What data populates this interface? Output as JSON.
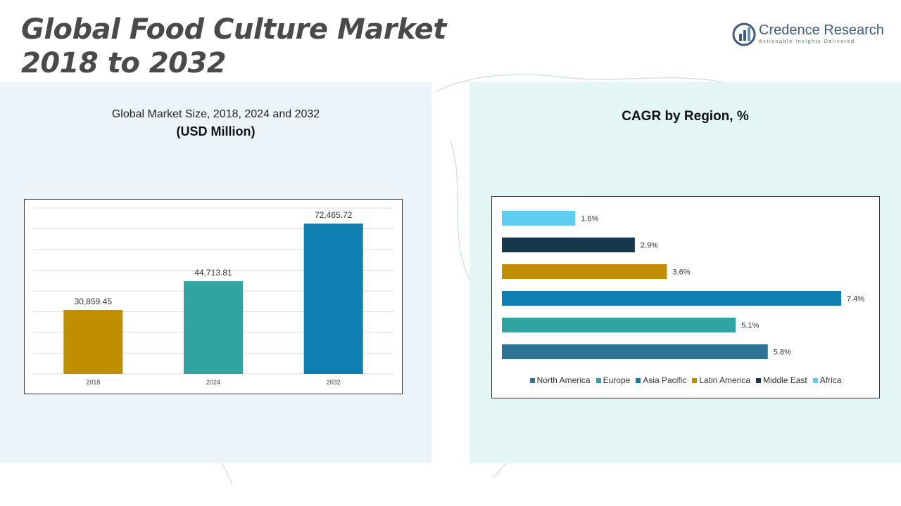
{
  "page": {
    "title_line1": "Global Food Culture Market",
    "title_line2": "2018 to 2032"
  },
  "logo": {
    "name": "Credence Research",
    "tagline": "Actionable Insights Delivered",
    "color": "#3d5a80"
  },
  "left_panel": {
    "subtitle": "Global Market Size, 2018, 2024 and 2032",
    "unit": "(USD Million)"
  },
  "right_panel": {
    "title": "CAGR by Region, %"
  },
  "chart_data": [
    {
      "type": "bar",
      "title": "Global Market Size, 2018, 2024 and 2032",
      "ylabel": "",
      "categories": [
        "2018",
        "2024",
        "2032"
      ],
      "values": [
        30859.45,
        44713.81,
        72465.72
      ],
      "labels": [
        "30,859.45",
        "44,713.81",
        "72,465.72"
      ],
      "colors": [
        "#bf8f00",
        "#31a3a3",
        "#0f7fb2"
      ],
      "ylim": [
        0,
        80000
      ],
      "grid": true
    },
    {
      "type": "bar",
      "orientation": "horizontal",
      "title": "CAGR by Region, %",
      "categories": [
        "North America",
        "Europe",
        "Asia Pacific",
        "Latin America",
        "Middle East",
        "Africa"
      ],
      "values": [
        5.8,
        5.1,
        7.4,
        3.6,
        2.9,
        1.6
      ],
      "labels": [
        "5.8%",
        "5.1%",
        "7.4%",
        "3.6%",
        "2.9%",
        "1.6%"
      ],
      "colors": [
        "#2e7394",
        "#31a3a3",
        "#0f7fb2",
        "#bf8f00",
        "#16384a",
        "#5fcdf0"
      ],
      "xlim": [
        0,
        7.4
      ],
      "legend_position": "bottom"
    }
  ]
}
